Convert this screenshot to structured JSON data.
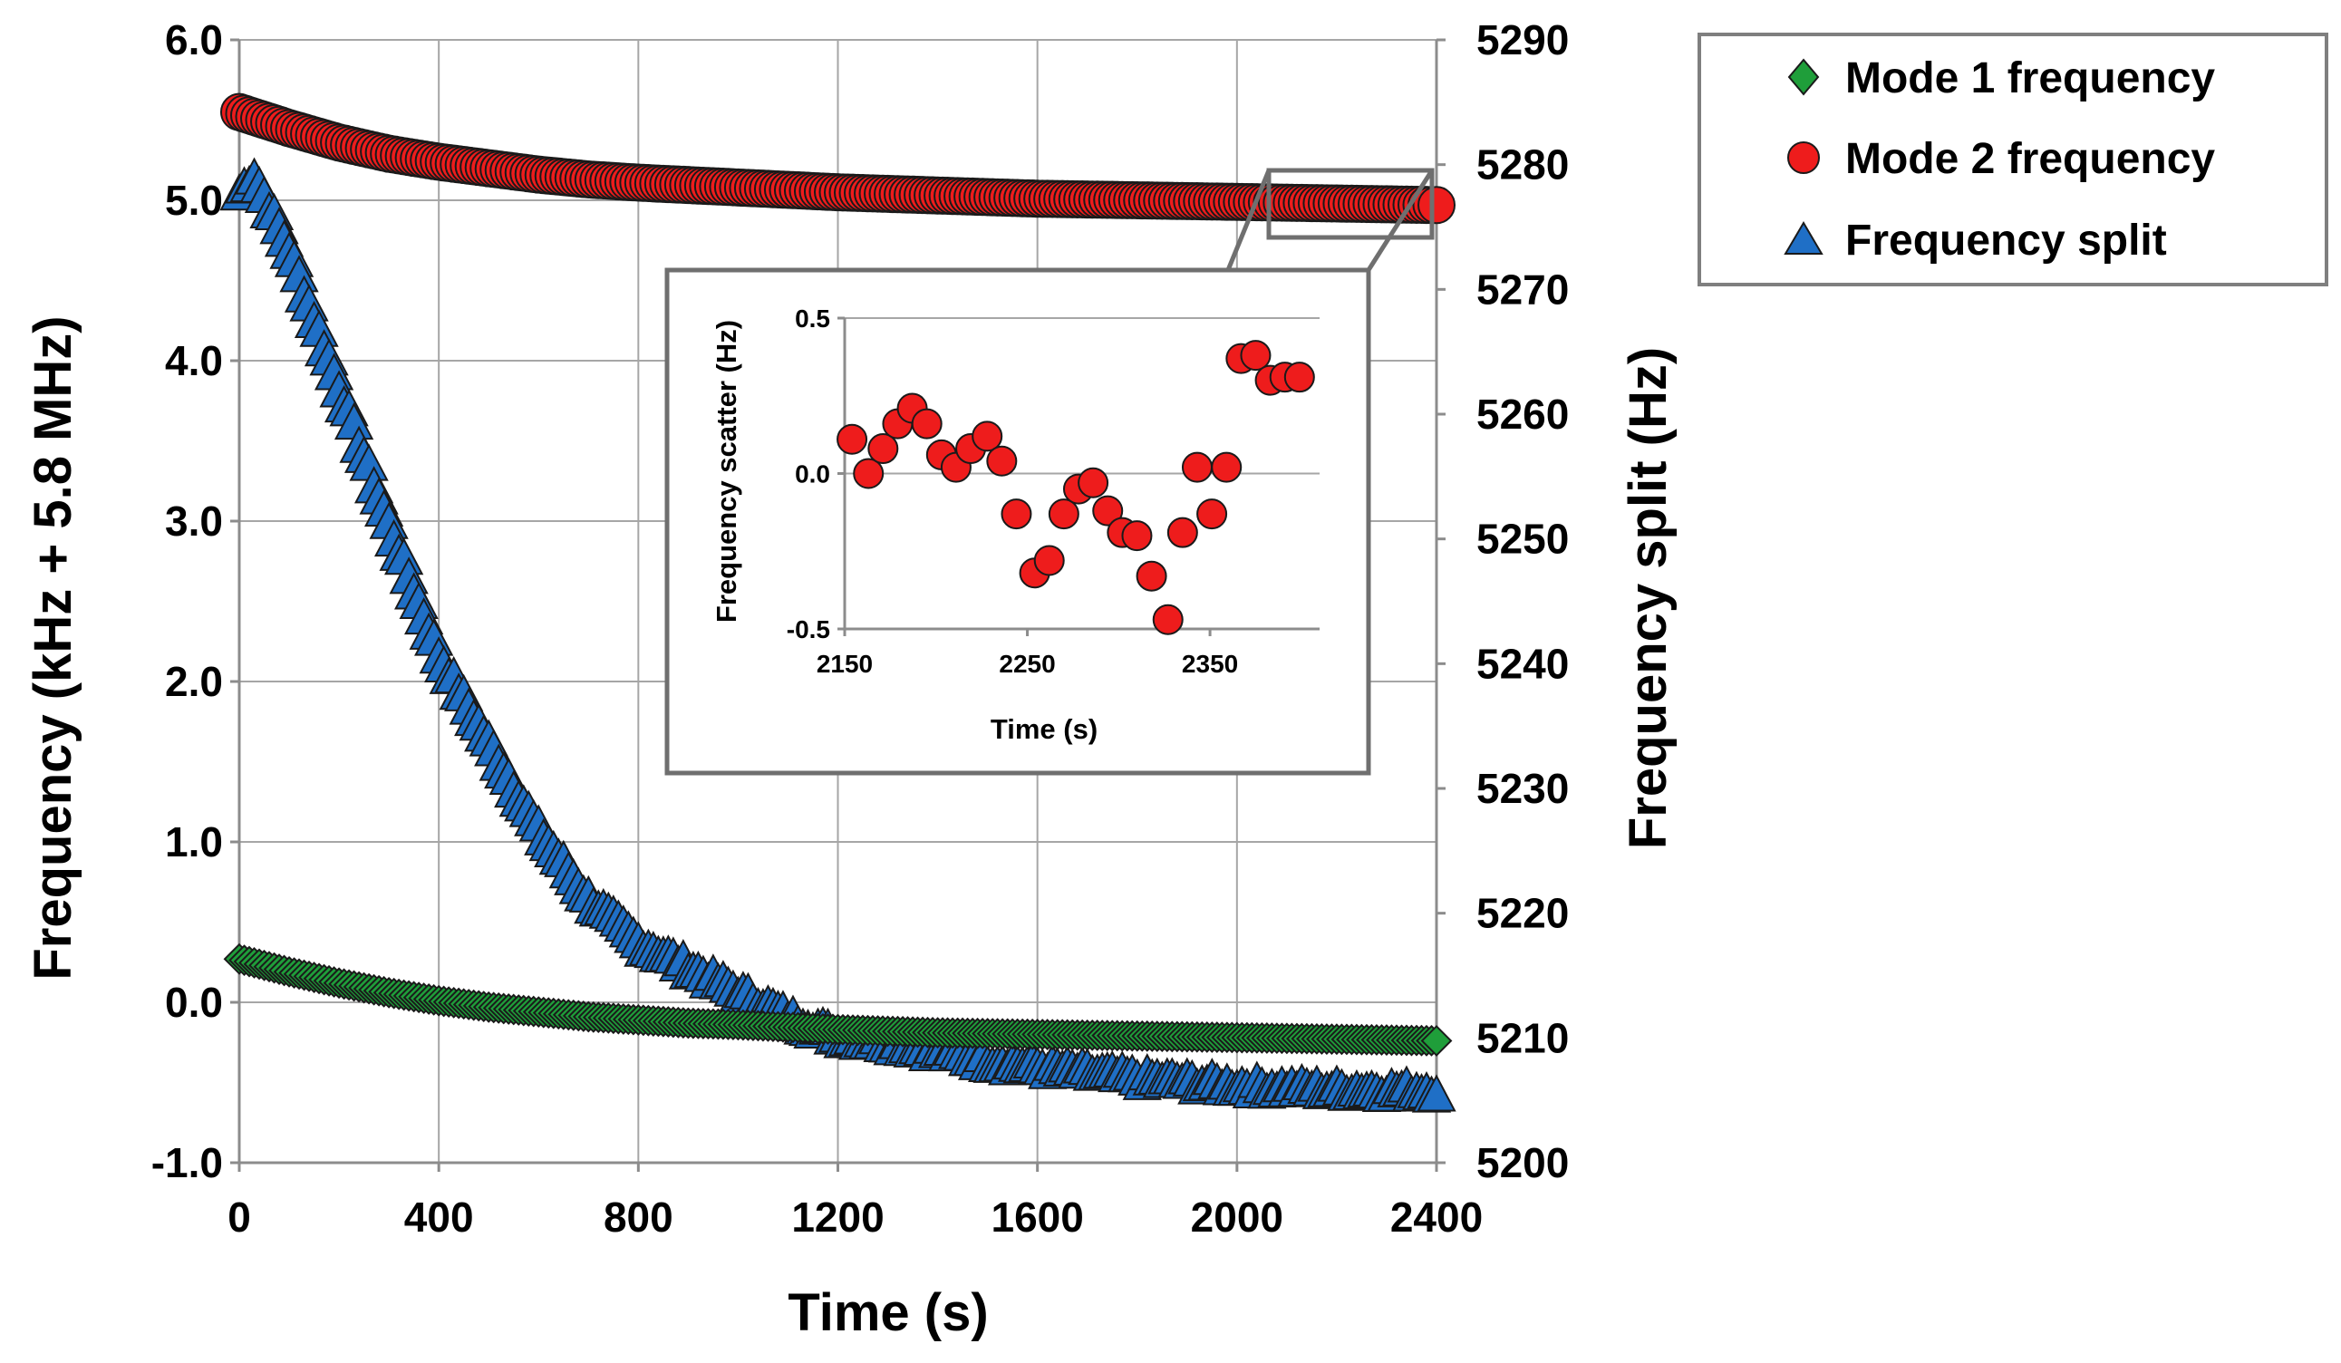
{
  "chart_data": [
    {
      "type": "scatter",
      "xlabel": "Time (s)",
      "ylabel": "Frequency (kHz  + 5.8 MHz)",
      "y2label": "Frequency split (Hz)",
      "xlim": [
        0,
        2400
      ],
      "ylim": [
        -1.0,
        6.0
      ],
      "y2lim": [
        5200,
        5290
      ],
      "grid": true,
      "x_ticks": [
        0,
        400,
        800,
        1200,
        1600,
        2000,
        2400
      ],
      "x_tick_labels": [
        "0",
        "400",
        "800",
        "1200",
        "1600",
        "2000",
        "2400"
      ],
      "y_ticks": [
        -1.0,
        0.0,
        1.0,
        2.0,
        3.0,
        4.0,
        5.0,
        6.0
      ],
      "y_tick_labels": [
        "-1.0",
        "0.0",
        "1.0",
        "2.0",
        "3.0",
        "4.0",
        "5.0",
        "6.0"
      ],
      "y2_ticks": [
        5200,
        5210,
        5220,
        5230,
        5240,
        5250,
        5260,
        5270,
        5280,
        5290
      ],
      "y2_tick_labels": [
        "5200",
        "5210",
        "5220",
        "5230",
        "5240",
        "5250",
        "5260",
        "5270",
        "5280",
        "5290"
      ],
      "legend_position": "top-right (outside plot)",
      "series": [
        {
          "name": "Mode 1 frequency",
          "marker": "diamond",
          "color": "#1f9e3a",
          "axis": "left",
          "x": [
            0,
            100,
            200,
            300,
            400,
            500,
            600,
            700,
            800,
            900,
            1000,
            1200,
            1400,
            1600,
            1800,
            2000,
            2200,
            2400
          ],
          "values": [
            0.27,
            0.19,
            0.12,
            0.06,
            0.01,
            -0.03,
            -0.06,
            -0.09,
            -0.11,
            -0.13,
            -0.14,
            -0.17,
            -0.19,
            -0.2,
            -0.21,
            -0.22,
            -0.23,
            -0.24
          ]
        },
        {
          "name": "Mode 2 frequency",
          "marker": "circle",
          "color": "#ee1c1c",
          "axis": "left",
          "x": [
            0,
            100,
            200,
            300,
            400,
            500,
            600,
            700,
            800,
            1000,
            1200,
            1400,
            1600,
            1800,
            2000,
            2200,
            2400
          ],
          "values": [
            5.55,
            5.45,
            5.36,
            5.29,
            5.24,
            5.2,
            5.16,
            5.13,
            5.11,
            5.08,
            5.05,
            5.03,
            5.01,
            5.0,
            4.99,
            4.98,
            4.97
          ]
        },
        {
          "name": "Frequency split",
          "marker": "triangle",
          "color": "#1f6fc6",
          "axis": "right",
          "x": [
            0,
            30,
            100,
            200,
            300,
            400,
            500,
            600,
            700,
            800,
            900,
            1000,
            1100,
            1200,
            1300,
            1400,
            1500,
            1600,
            1800,
            2000,
            2200,
            2400
          ],
          "values": [
            5277.5,
            5279.0,
            5273.0,
            5262.0,
            5251.0,
            5240.5,
            5233.5,
            5226.5,
            5221.0,
            5217.5,
            5215.5,
            5213.5,
            5211.5,
            5210.0,
            5209.5,
            5208.8,
            5208.0,
            5207.5,
            5206.6,
            5206.0,
            5205.7,
            5205.6
          ]
        }
      ]
    },
    {
      "type": "scatter",
      "xlabel": "Time (s)",
      "ylabel": "Frequency scatter (Hz)",
      "xlim": [
        2150,
        2410
      ],
      "ylim": [
        -0.5,
        0.5
      ],
      "grid": true,
      "x_ticks": [
        2150,
        2250,
        2350
      ],
      "x_tick_labels": [
        "2150",
        "2250",
        "2350"
      ],
      "y_ticks": [
        -0.5,
        0.0,
        0.5
      ],
      "y_tick_labels": [
        "-0.5",
        "0.0",
        "0.5"
      ],
      "series": [
        {
          "name": "Mode 2 frequency scatter",
          "marker": "circle",
          "color": "#ee1c1c",
          "x": [
            2154,
            2163,
            2171,
            2179,
            2187,
            2195,
            2203,
            2211,
            2219,
            2228,
            2236,
            2244,
            2254,
            2262,
            2270,
            2278,
            2286,
            2294,
            2302,
            2310,
            2318,
            2327,
            2335,
            2343,
            2351,
            2359,
            2367,
            2375,
            2383,
            2391,
            2399
          ],
          "values": [
            0.11,
            0.0,
            0.08,
            0.16,
            0.21,
            0.16,
            0.06,
            0.02,
            0.08,
            0.12,
            0.04,
            -0.13,
            -0.32,
            -0.28,
            -0.13,
            -0.05,
            -0.03,
            -0.12,
            -0.19,
            -0.2,
            -0.33,
            -0.47,
            -0.19,
            0.02,
            -0.13,
            0.02,
            0.37,
            0.38,
            0.3,
            0.31,
            0.31
          ]
        }
      ]
    }
  ],
  "legend": {
    "items": [
      {
        "label": "Mode 1 frequency",
        "marker": "diamond",
        "color": "#1f9e3a"
      },
      {
        "label": "Mode 2 frequency",
        "marker": "circle",
        "color": "#ee1c1c"
      },
      {
        "label": "Frequency split",
        "marker": "triangle",
        "color": "#1f6fc6"
      }
    ]
  }
}
